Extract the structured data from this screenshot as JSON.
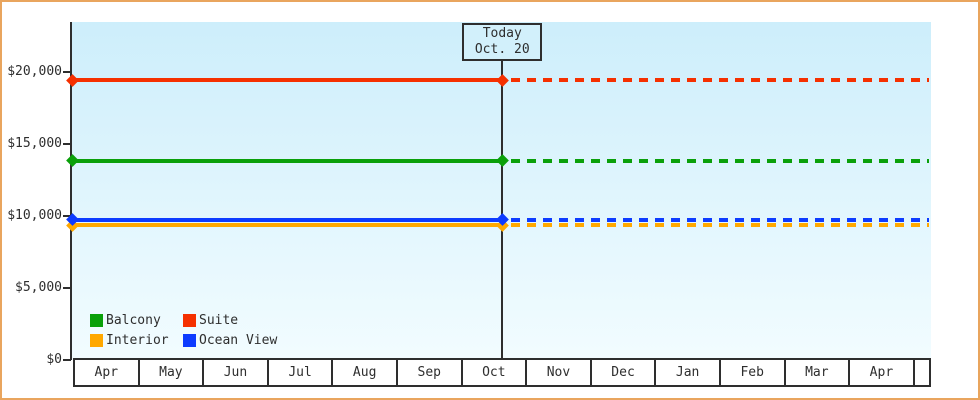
{
  "window": {
    "border_color": "#e9a55e",
    "background": "#ffffff"
  },
  "chart_data": {
    "type": "line",
    "title": "",
    "plot_background_top": "#cdeefb",
    "plot_background_bottom": "#f2fcff",
    "axis_color": "#2e2e2e",
    "grid": "off",
    "x_axis": {
      "months": [
        "Apr",
        "May",
        "Jun",
        "Jul",
        "Aug",
        "Sep",
        "Oct",
        "Nov",
        "Dec",
        "Jan",
        "Feb",
        "Mar",
        "Apr"
      ]
    },
    "y_axis": {
      "range": [
        0,
        23500
      ],
      "ticks": [
        {
          "label": "$20,000",
          "value": 20000
        },
        {
          "label": "$15,000",
          "value": 15000
        },
        {
          "label": "$10,000",
          "value": 10000
        },
        {
          "label": "$5,000",
          "value": 5000
        },
        {
          "label": "$0",
          "value": 0
        }
      ]
    },
    "today_marker": {
      "line1": "Today",
      "line2": "Oct. 20",
      "month_index": 6,
      "month_fraction": 0.645,
      "box_background": "#d2f0fb"
    },
    "series": [
      {
        "name": "Suite",
        "color": "#f53000",
        "value": 19450,
        "style": "solid-then-dashed-after-today"
      },
      {
        "name": "Balcony",
        "color": "#0aa00a",
        "value": 13850,
        "style": "solid-then-dashed-after-today"
      },
      {
        "name": "Interior",
        "color": "#ffa800",
        "value": 9380,
        "style": "solid-then-dashed-after-today"
      },
      {
        "name": "Ocean View",
        "color": "#0d3bff",
        "value": 9740,
        "style": "solid-then-dashed-after-today"
      }
    ],
    "legend": {
      "position": "bottom-left",
      "items": [
        {
          "label": "Balcony",
          "color": "#0aa00a"
        },
        {
          "label": "Suite",
          "color": "#f53000"
        },
        {
          "label": "Interior",
          "color": "#ffa800"
        },
        {
          "label": "Ocean View",
          "color": "#0d3bff"
        }
      ]
    }
  }
}
